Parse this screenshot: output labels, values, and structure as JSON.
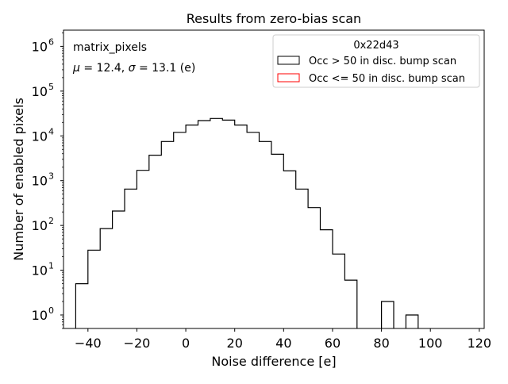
{
  "chart_data": {
    "type": "histogram",
    "title": "Results from zero-bias scan",
    "xlabel": "Noise difference [e]",
    "ylabel": "Number of enabled pixels",
    "y_scale": "log",
    "xlim": [
      -50,
      122
    ],
    "ylim": [
      0.5,
      2300000
    ],
    "x_ticks": [
      -40,
      -20,
      0,
      20,
      40,
      60,
      80,
      100,
      120
    ],
    "x_tick_labels": [
      "−40",
      "−20",
      "0",
      "20",
      "40",
      "60",
      "80",
      "100",
      "120"
    ],
    "y_ticks": [
      1,
      10,
      100,
      1000,
      10000,
      100000,
      1000000
    ],
    "y_tick_labels": [
      {
        "base": "10",
        "exp": "0"
      },
      {
        "base": "10",
        "exp": "1"
      },
      {
        "base": "10",
        "exp": "2"
      },
      {
        "base": "10",
        "exp": "3"
      },
      {
        "base": "10",
        "exp": "4"
      },
      {
        "base": "10",
        "exp": "5"
      },
      {
        "base": "10",
        "exp": "6"
      }
    ],
    "annotations": {
      "name": "matrix_pixels",
      "stats_prefix": "μ = 12.4, ",
      "stats_sigma": "σ",
      "stats_suffix": " = 13.1 (e)"
    },
    "legend": {
      "position": "top-right",
      "title": "0x22d43",
      "entries": [
        {
          "label": "Occ > 50 in disc. bump scan",
          "color": "#000000"
        },
        {
          "label": "Occ <= 50 in disc. bump scan",
          "color": "#ff0000"
        }
      ]
    },
    "bin_width": 5,
    "bin_edges_start": -45,
    "series": [
      {
        "name": "Occ > 50 in disc. bump scan",
        "color": "#000000",
        "counts": [
          5,
          28,
          85,
          210,
          650,
          1700,
          3700,
          7500,
          12000,
          17500,
          22000,
          24500,
          22500,
          17500,
          12000,
          7500,
          3900,
          1650,
          650,
          250,
          80,
          23,
          6,
          0,
          0,
          2,
          0,
          1,
          0,
          0,
          0,
          0,
          0
        ]
      },
      {
        "name": "Occ <= 50 in disc. bump scan",
        "color": "#ff0000",
        "counts": []
      }
    ]
  }
}
